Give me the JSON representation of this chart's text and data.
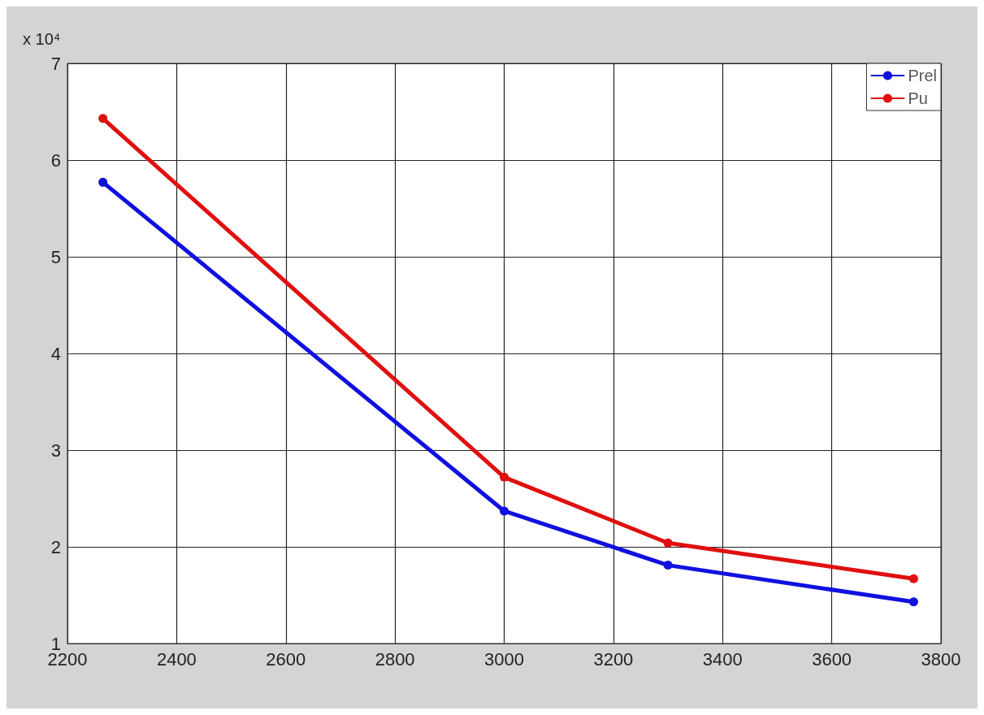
{
  "chart_data": {
    "type": "line",
    "x": [
      2265,
      3000,
      3300,
      3750
    ],
    "series": [
      {
        "name": "Prel",
        "color": "#1010e0",
        "values": [
          5.77,
          2.37,
          1.81,
          1.43
        ]
      },
      {
        "name": "Pu",
        "color": "#e01010",
        "values": [
          6.43,
          2.72,
          2.04,
          1.67
        ]
      }
    ],
    "xlim": [
      2200,
      3800
    ],
    "xticks": [
      2200,
      2400,
      2600,
      2800,
      3000,
      3200,
      3400,
      3600,
      3800
    ],
    "ylim": [
      1,
      7
    ],
    "yticks": [
      1,
      2,
      3,
      4,
      5,
      6,
      7
    ],
    "annotations": [
      "x 10⁴"
    ],
    "grid": true,
    "legend": "top right",
    "marker": "circle",
    "line_style": "solid"
  }
}
